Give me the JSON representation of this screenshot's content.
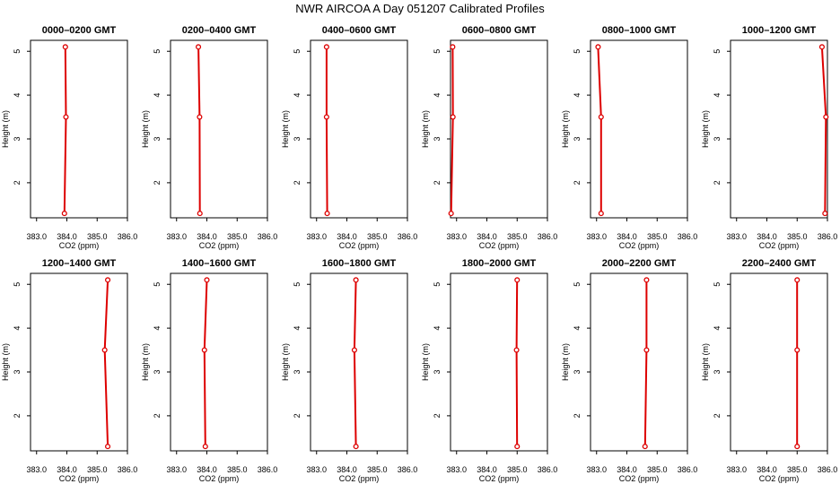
{
  "page_title": "NWR AIRCOA A  Day 051207  Calibrated Profiles",
  "chart_data": [
    {
      "type": "line",
      "title": "0000–0200 GMT",
      "xlabel": "CO2 (ppm)",
      "ylabel": "Height (m)",
      "xlim": [
        382.8,
        386.0
      ],
      "ylim": [
        1.2,
        5.25
      ],
      "x_ticks": [
        "383.0",
        "384.0",
        "385.0",
        "386.0"
      ],
      "y_ticks": [
        "2",
        "3",
        "4",
        "5"
      ],
      "series": [
        {
          "x": [
            383.92,
            383.97,
            383.95
          ],
          "y": [
            1.3,
            3.5,
            5.1
          ]
        }
      ],
      "color": "#dd0000"
    },
    {
      "type": "line",
      "title": "0200–0400 GMT",
      "xlabel": "CO2 (ppm)",
      "ylabel": "Height (m)",
      "xlim": [
        382.8,
        386.0
      ],
      "ylim": [
        1.2,
        5.25
      ],
      "x_ticks": [
        "383.0",
        "384.0",
        "385.0",
        "386.0"
      ],
      "y_ticks": [
        "2",
        "3",
        "4",
        "5"
      ],
      "series": [
        {
          "x": [
            383.77,
            383.76,
            383.72
          ],
          "y": [
            1.3,
            3.5,
            5.1
          ]
        }
      ],
      "color": "#dd0000"
    },
    {
      "type": "line",
      "title": "0400–0600 GMT",
      "xlabel": "CO2 (ppm)",
      "ylabel": "Height (m)",
      "xlim": [
        382.8,
        386.0
      ],
      "ylim": [
        1.2,
        5.25
      ],
      "x_ticks": [
        "383.0",
        "384.0",
        "385.0",
        "386.0"
      ],
      "y_ticks": [
        "2",
        "3",
        "4",
        "5"
      ],
      "series": [
        {
          "x": [
            383.35,
            383.33,
            383.33
          ],
          "y": [
            1.3,
            3.5,
            5.1
          ]
        }
      ],
      "color": "#dd0000"
    },
    {
      "type": "line",
      "title": "0600–0800 GMT",
      "xlabel": "CO2 (ppm)",
      "ylabel": "Height (m)",
      "xlim": [
        382.8,
        386.0
      ],
      "ylim": [
        1.2,
        5.25
      ],
      "x_ticks": [
        "383.0",
        "384.0",
        "385.0",
        "386.0"
      ],
      "y_ticks": [
        "2",
        "3",
        "4",
        "5"
      ],
      "series": [
        {
          "x": [
            382.82,
            382.88,
            382.87
          ],
          "y": [
            1.3,
            3.5,
            5.1
          ]
        }
      ],
      "color": "#dd0000"
    },
    {
      "type": "line",
      "title": "0800–1000 GMT",
      "xlabel": "CO2 (ppm)",
      "ylabel": "Height (m)",
      "xlim": [
        382.8,
        386.0
      ],
      "ylim": [
        1.2,
        5.25
      ],
      "x_ticks": [
        "383.0",
        "384.0",
        "385.0",
        "386.0"
      ],
      "y_ticks": [
        "2",
        "3",
        "4",
        "5"
      ],
      "series": [
        {
          "x": [
            383.15,
            383.15,
            383.05
          ],
          "y": [
            1.3,
            3.5,
            5.1
          ]
        }
      ],
      "color": "#dd0000"
    },
    {
      "type": "line",
      "title": "1000–1200 GMT",
      "xlabel": "CO2 (ppm)",
      "ylabel": "Height (m)",
      "xlim": [
        382.8,
        386.0
      ],
      "ylim": [
        1.2,
        5.25
      ],
      "x_ticks": [
        "383.0",
        "384.0",
        "385.0",
        "386.0"
      ],
      "y_ticks": [
        "2",
        "3",
        "4",
        "5"
      ],
      "series": [
        {
          "x": [
            385.92,
            385.95,
            385.82
          ],
          "y": [
            1.3,
            3.5,
            5.1
          ]
        }
      ],
      "color": "#dd0000"
    },
    {
      "type": "line",
      "title": "1200–1400 GMT",
      "xlabel": "CO2 (ppm)",
      "ylabel": "Height (m)",
      "xlim": [
        382.8,
        386.0
      ],
      "ylim": [
        1.2,
        5.25
      ],
      "x_ticks": [
        "383.0",
        "384.0",
        "385.0",
        "386.0"
      ],
      "y_ticks": [
        "2",
        "3",
        "4",
        "5"
      ],
      "series": [
        {
          "x": [
            385.35,
            385.25,
            385.35
          ],
          "y": [
            1.3,
            3.5,
            5.1
          ]
        }
      ],
      "color": "#dd0000"
    },
    {
      "type": "line",
      "title": "1400–1600 GMT",
      "xlabel": "CO2 (ppm)",
      "ylabel": "Height (m)",
      "xlim": [
        382.8,
        386.0
      ],
      "ylim": [
        1.2,
        5.25
      ],
      "x_ticks": [
        "383.0",
        "384.0",
        "385.0",
        "386.0"
      ],
      "y_ticks": [
        "2",
        "3",
        "4",
        "5"
      ],
      "series": [
        {
          "x": [
            383.95,
            383.92,
            384.0
          ],
          "y": [
            1.3,
            3.5,
            5.1
          ]
        }
      ],
      "color": "#dd0000"
    },
    {
      "type": "line",
      "title": "1600–1800 GMT",
      "xlabel": "CO2 (ppm)",
      "ylabel": "Height (m)",
      "xlim": [
        382.8,
        386.0
      ],
      "ylim": [
        1.2,
        5.25
      ],
      "x_ticks": [
        "383.0",
        "384.0",
        "385.0",
        "386.0"
      ],
      "y_ticks": [
        "2",
        "3",
        "4",
        "5"
      ],
      "series": [
        {
          "x": [
            384.3,
            384.25,
            384.3
          ],
          "y": [
            1.3,
            3.5,
            5.1
          ]
        }
      ],
      "color": "#dd0000"
    },
    {
      "type": "line",
      "title": "1800–2000 GMT",
      "xlabel": "CO2 (ppm)",
      "ylabel": "Height (m)",
      "xlim": [
        382.8,
        386.0
      ],
      "ylim": [
        1.2,
        5.25
      ],
      "x_ticks": [
        "383.0",
        "384.0",
        "385.0",
        "386.0"
      ],
      "y_ticks": [
        "2",
        "3",
        "4",
        "5"
      ],
      "series": [
        {
          "x": [
            385.0,
            384.98,
            385.0
          ],
          "y": [
            1.3,
            3.5,
            5.1
          ]
        }
      ],
      "color": "#dd0000"
    },
    {
      "type": "line",
      "title": "2000–2200 GMT",
      "xlabel": "CO2 (ppm)",
      "ylabel": "Height (m)",
      "xlim": [
        382.8,
        386.0
      ],
      "ylim": [
        1.2,
        5.25
      ],
      "x_ticks": [
        "383.0",
        "384.0",
        "385.0",
        "386.0"
      ],
      "y_ticks": [
        "2",
        "3",
        "4",
        "5"
      ],
      "series": [
        {
          "x": [
            384.6,
            384.65,
            384.65
          ],
          "y": [
            1.3,
            3.5,
            5.1
          ]
        }
      ],
      "color": "#dd0000"
    },
    {
      "type": "line",
      "title": "2200–2400 GMT",
      "xlabel": "CO2 (ppm)",
      "ylabel": "Height (m)",
      "xlim": [
        382.8,
        386.0
      ],
      "ylim": [
        1.2,
        5.25
      ],
      "x_ticks": [
        "383.0",
        "384.0",
        "385.0",
        "386.0"
      ],
      "y_ticks": [
        "2",
        "3",
        "4",
        "5"
      ],
      "series": [
        {
          "x": [
            385.0,
            385.0,
            385.0
          ],
          "y": [
            1.3,
            3.5,
            5.1
          ]
        }
      ],
      "color": "#dd0000"
    }
  ]
}
